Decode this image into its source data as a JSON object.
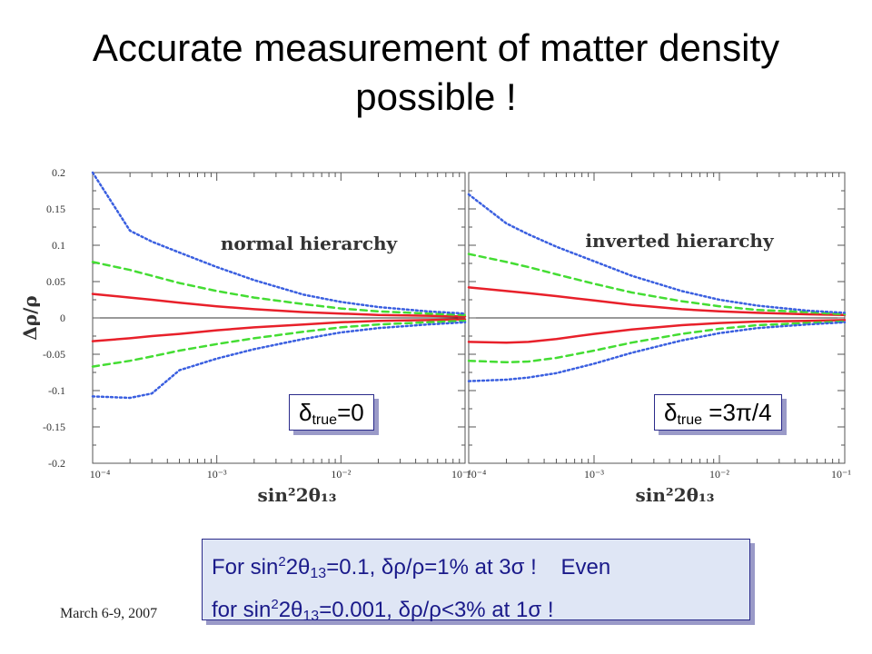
{
  "slide": {
    "title": "Accurate measurement of matter density possible !",
    "footer_date": "March 6-9, 2007"
  },
  "boxes": {
    "left": {
      "delta": "δ",
      "subscript": "true",
      "value": "=0"
    },
    "right": {
      "delta": "δ",
      "subscript": "true",
      "value": " =3π/4"
    }
  },
  "note": {
    "line1_a": "For sin",
    "line1_sup": "2",
    "line1_b": "2θ",
    "line1_sub": "13",
    "line1_c": "=0.1, δρ/ρ=1% at 3σ !    Even",
    "line2_a": "for sin",
    "line2_sup": "2",
    "line2_b": "2θ",
    "line2_sub": "13",
    "line2_c": "=0.001, δρ/ρ<3% at 1σ !"
  },
  "colors": {
    "red": "#e8202a",
    "green": "#44dd33",
    "blue": "#3a5fe0",
    "note_text": "#1a1a8a"
  },
  "chart_data": [
    {
      "type": "line",
      "title": "normal hierarchy",
      "xlabel": "sin²2θ₁₃",
      "ylabel": "Δρ/ρ",
      "xscale": "log",
      "xlim": [
        0.0001,
        0.1
      ],
      "ylim": [
        -0.2,
        0.2
      ],
      "x_tick_labels": [
        "10⁻⁴",
        "10⁻³",
        "10⁻²",
        "10⁻¹"
      ],
      "y_tick_labels": [
        "0.2",
        "0.15",
        "0.1",
        "0.05",
        "0",
        "-0.05",
        "-0.1",
        "-0.15",
        "-0.2"
      ],
      "x": [
        0.0001,
        0.0002,
        0.0003,
        0.0005,
        0.001,
        0.002,
        0.005,
        0.01,
        0.02,
        0.05,
        0.1
      ],
      "series": [
        {
          "style": "solid",
          "color": "red",
          "values": [
            0.033,
            0.028,
            0.025,
            0.021,
            0.016,
            0.012,
            0.008,
            0.006,
            0.004,
            0.003,
            0.002
          ]
        },
        {
          "style": "solid",
          "color": "red",
          "values": [
            -0.032,
            -0.028,
            -0.025,
            -0.022,
            -0.017,
            -0.013,
            -0.009,
            -0.006,
            -0.004,
            -0.003,
            -0.002
          ]
        },
        {
          "style": "dashed",
          "color": "green",
          "values": [
            0.077,
            0.066,
            0.058,
            0.048,
            0.037,
            0.028,
            0.019,
            0.013,
            0.009,
            0.006,
            0.004
          ]
        },
        {
          "style": "dashed",
          "color": "green",
          "values": [
            -0.067,
            -0.059,
            -0.053,
            -0.045,
            -0.036,
            -0.028,
            -0.019,
            -0.013,
            -0.009,
            -0.006,
            -0.004
          ]
        },
        {
          "style": "dotted",
          "color": "blue",
          "values": [
            0.2,
            0.12,
            0.105,
            0.09,
            0.07,
            0.052,
            0.032,
            0.022,
            0.015,
            0.009,
            0.006
          ]
        },
        {
          "style": "dotted",
          "color": "blue",
          "values": [
            -0.108,
            -0.11,
            -0.104,
            -0.072,
            -0.056,
            -0.043,
            -0.029,
            -0.02,
            -0.014,
            -0.009,
            -0.006
          ]
        }
      ]
    },
    {
      "type": "line",
      "title": "inverted hierarchy",
      "xlabel": "sin²2θ₁₃",
      "xscale": "log",
      "xlim": [
        0.0001,
        0.1
      ],
      "ylim": [
        -0.2,
        0.2
      ],
      "x_tick_labels": [
        "10⁻⁴",
        "10⁻³",
        "10⁻²",
        "10⁻¹"
      ],
      "x": [
        0.0001,
        0.0002,
        0.0003,
        0.0005,
        0.001,
        0.002,
        0.005,
        0.01,
        0.02,
        0.05,
        0.1
      ],
      "series": [
        {
          "style": "solid",
          "color": "red",
          "values": [
            0.042,
            0.037,
            0.034,
            0.03,
            0.024,
            0.018,
            0.012,
            0.009,
            0.007,
            0.005,
            0.004
          ]
        },
        {
          "style": "solid",
          "color": "red",
          "values": [
            -0.033,
            -0.034,
            -0.033,
            -0.029,
            -0.022,
            -0.016,
            -0.01,
            -0.007,
            -0.005,
            -0.004,
            -0.003
          ]
        },
        {
          "style": "dashed",
          "color": "green",
          "values": [
            0.088,
            0.077,
            0.07,
            0.06,
            0.047,
            0.035,
            0.023,
            0.016,
            0.011,
            0.008,
            0.005
          ]
        },
        {
          "style": "dashed",
          "color": "green",
          "values": [
            -0.059,
            -0.061,
            -0.06,
            -0.055,
            -0.045,
            -0.034,
            -0.022,
            -0.015,
            -0.01,
            -0.007,
            -0.005
          ]
        },
        {
          "style": "dotted",
          "color": "blue",
          "values": [
            0.17,
            0.13,
            0.115,
            0.098,
            0.078,
            0.058,
            0.037,
            0.025,
            0.017,
            0.01,
            0.007
          ]
        },
        {
          "style": "dotted",
          "color": "blue",
          "values": [
            -0.087,
            -0.085,
            -0.082,
            -0.076,
            -0.063,
            -0.048,
            -0.031,
            -0.021,
            -0.014,
            -0.009,
            -0.006
          ]
        }
      ]
    }
  ]
}
